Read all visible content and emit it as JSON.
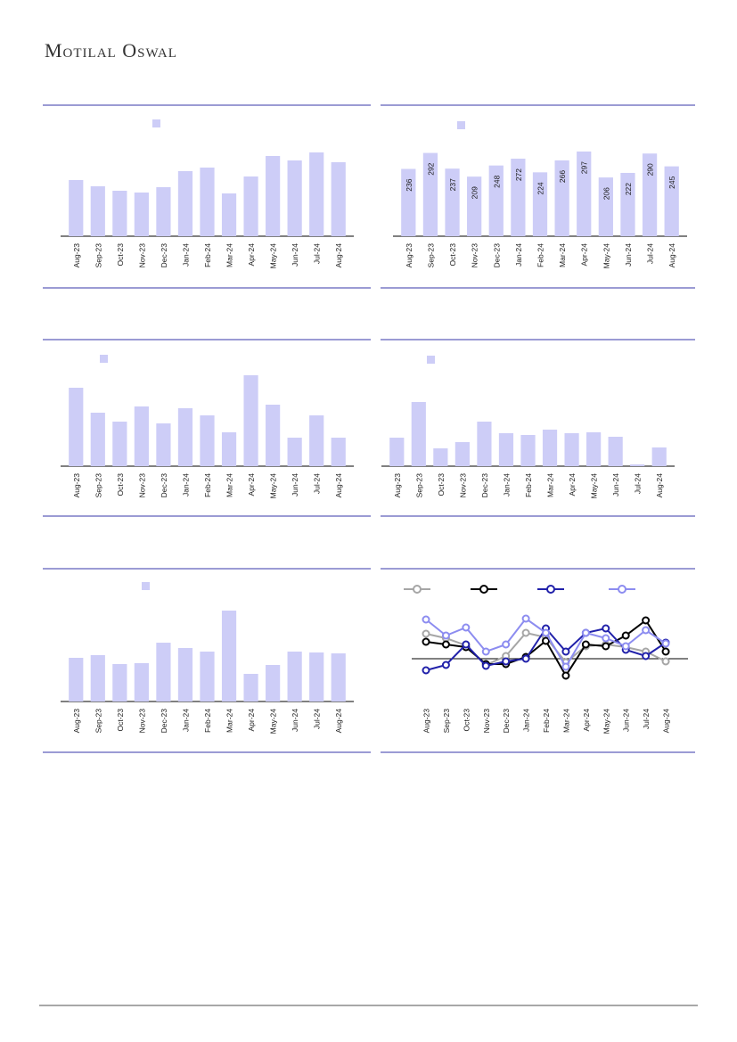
{
  "page": {
    "brand": "Motilal Oswal",
    "colors": {
      "bar_fill": "#CDCDF7",
      "panel_border": "#9B9BD4",
      "axis_line": "#000000",
      "label_text": "#1a1a1a",
      "footer_line": "#A8A8A8",
      "series_gray": "#A6A6A6",
      "series_black": "#000000",
      "series_navy": "#2121AA",
      "series_periwinkle": "#8C8CF0"
    }
  },
  "chart_data": [
    {
      "type": "bar",
      "position": "top-left",
      "title": "",
      "legend": {
        "marker": "square",
        "label": ""
      },
      "categories": [
        "Aug-23",
        "Sep-23",
        "Oct-23",
        "Nov-23",
        "Dec-23",
        "Jan-24",
        "Feb-24",
        "Mar-24",
        "Apr-24",
        "May-24",
        "Jun-24",
        "Jul-24",
        "Aug-24"
      ],
      "values": [
        63,
        56,
        51,
        49,
        55,
        73,
        77,
        48,
        67,
        90,
        85,
        94,
        83
      ],
      "value_labels_visible": false,
      "units": "unlabeled-relative",
      "ylim": [
        0,
        100
      ]
    },
    {
      "type": "bar",
      "position": "top-right",
      "title": "",
      "legend": {
        "marker": "square",
        "label": ""
      },
      "categories": [
        "Aug-23",
        "Sep-23",
        "Oct-23",
        "Nov-23",
        "Dec-23",
        "Jan-24",
        "Feb-24",
        "Mar-24",
        "Apr-24",
        "May-24",
        "Jun-24",
        "Jul-24",
        "Aug-24"
      ],
      "values": [
        236,
        292,
        237,
        209,
        248,
        272,
        224,
        266,
        297,
        206,
        222,
        290,
        245
      ],
      "value_labels_visible": true,
      "units": "labeled",
      "ylim": [
        0,
        300
      ]
    },
    {
      "type": "bar",
      "position": "middle-left",
      "title": "",
      "legend": {
        "marker": "square",
        "label": ""
      },
      "categories": [
        "Aug-23",
        "Sep-23",
        "Oct-23",
        "Nov-23",
        "Dec-23",
        "Jan-24",
        "Feb-24",
        "Mar-24",
        "Apr-24",
        "May-24",
        "Jun-24",
        "Jul-24",
        "Aug-24"
      ],
      "values": [
        88,
        60,
        50,
        67,
        48,
        65,
        57,
        38,
        102,
        69,
        32,
        57,
        32
      ],
      "value_labels_visible": false,
      "units": "unlabeled-relative",
      "ylim": [
        0,
        110
      ]
    },
    {
      "type": "bar",
      "position": "middle-right",
      "title": "",
      "legend": {
        "marker": "square",
        "label": ""
      },
      "categories": [
        "Aug-23",
        "Sep-23",
        "Oct-23",
        "Nov-23",
        "Dec-23",
        "Jan-24",
        "Feb-24",
        "Mar-24",
        "Apr-24",
        "May-24",
        "Jun-24",
        "Jul-24",
        "Aug-24"
      ],
      "values": [
        32,
        72,
        20,
        27,
        50,
        37,
        35,
        41,
        37,
        38,
        33,
        2,
        21
      ],
      "value_labels_visible": false,
      "units": "unlabeled-relative",
      "ylim": [
        0,
        80
      ]
    },
    {
      "type": "bar",
      "position": "bottom-left",
      "title": "",
      "legend": {
        "marker": "square",
        "label": ""
      },
      "categories": [
        "Aug-23",
        "Sep-23",
        "Oct-23",
        "Nov-23",
        "Dec-23",
        "Jan-24",
        "Feb-24",
        "Mar-24",
        "Apr-24",
        "May-24",
        "Jun-24",
        "Jul-24",
        "Aug-24"
      ],
      "values": [
        49,
        52,
        42,
        43,
        66,
        60,
        56,
        102,
        31,
        41,
        56,
        55,
        54
      ],
      "value_labels_visible": false,
      "units": "unlabeled-relative",
      "ylim": [
        0,
        110
      ]
    },
    {
      "type": "line",
      "position": "bottom-right",
      "title": "",
      "legend_position": "top",
      "legend_labels_visible": false,
      "zero_line": true,
      "categories": [
        "Aug-23",
        "Sep-23",
        "Oct-23",
        "Nov-23",
        "Dec-23",
        "Jan-24",
        "Feb-24",
        "Mar-24",
        "Apr-24",
        "May-24",
        "Jun-24",
        "Jul-24",
        "Aug-24"
      ],
      "series": [
        {
          "name": "",
          "color": "#A6A6A6",
          "values": [
            28,
            23,
            15,
            -7,
            3,
            29,
            24,
            -4,
            14,
            16,
            13,
            8,
            -3
          ]
        },
        {
          "name": "",
          "color": "#000000",
          "values": [
            19,
            16,
            13,
            -6,
            -6,
            2,
            20,
            -19,
            16,
            14,
            26,
            43,
            8
          ]
        },
        {
          "name": "",
          "color": "#2121AA",
          "values": [
            -13,
            -7,
            16,
            -8,
            -3,
            0,
            34,
            8,
            29,
            34,
            10,
            3,
            18
          ]
        },
        {
          "name": "",
          "color": "#8C8CF0",
          "values": [
            44,
            26,
            35,
            8,
            16,
            45,
            29,
            -9,
            29,
            23,
            14,
            32,
            17
          ]
        }
      ],
      "units": "unlabeled-relative",
      "ylim": [
        -25,
        50
      ]
    }
  ]
}
